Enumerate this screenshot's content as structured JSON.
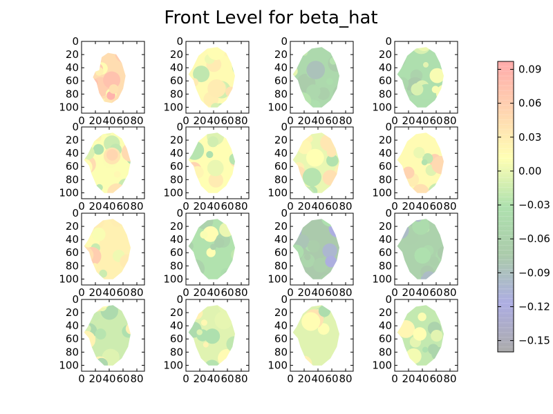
{
  "chart_data": {
    "type": "heatmap",
    "title": "Front Level for beta_hat",
    "grid": false,
    "layout": "4x4 small-multiple panels with shared colorbar at right",
    "x_axis": {
      "ticks": [
        0,
        20,
        40,
        60,
        80
      ],
      "tick_labels": [
        "0",
        "20",
        "40",
        "60",
        "80"
      ],
      "range": [
        0,
        91
      ]
    },
    "y_axis": {
      "ticks": [
        0,
        20,
        40,
        60,
        80,
        100
      ],
      "tick_labels": [
        "0",
        "20",
        "40",
        "60",
        "80",
        "100"
      ],
      "range": [
        0,
        109
      ],
      "inverted": true
    },
    "colorbar": {
      "range": [
        -0.16,
        0.097
      ],
      "ticks": [
        0.09,
        0.06,
        0.03,
        0.0,
        -0.03,
        -0.06,
        -0.09,
        -0.12,
        -0.15
      ],
      "tick_labels": [
        "0.09",
        "0.06",
        "0.03",
        "0.00",
        "−0.03",
        "−0.06",
        "−0.09",
        "−0.12",
        "−0.15"
      ],
      "colormap_stops": [
        "#666666",
        "#6a6acb",
        "#66a066",
        "#6cc86c",
        "#ffff76",
        "#ffb070",
        "#ff6666"
      ],
      "alpha": 0.55,
      "placement": "right"
    },
    "panels": [
      {
        "index": 1,
        "mean_level": 0.045,
        "shape": "small"
      },
      {
        "index": 2,
        "mean_level": 0.015
      },
      {
        "index": 3,
        "mean_level": -0.045
      },
      {
        "index": 4,
        "mean_level": -0.035
      },
      {
        "index": 5,
        "mean_level": 0.01
      },
      {
        "index": 6,
        "mean_level": 0.012
      },
      {
        "index": 7,
        "mean_level": 0.0
      },
      {
        "index": 8,
        "mean_level": 0.015
      },
      {
        "index": 9,
        "mean_level": 0.025
      },
      {
        "index": 10,
        "mean_level": -0.03
      },
      {
        "index": 11,
        "mean_level": -0.075
      },
      {
        "index": 12,
        "mean_level": -0.06
      },
      {
        "index": 13,
        "mean_level": -0.015
      },
      {
        "index": 14,
        "mean_level": -0.005
      },
      {
        "index": 15,
        "mean_level": -0.005
      },
      {
        "index": 16,
        "mean_level": -0.02
      }
    ]
  }
}
